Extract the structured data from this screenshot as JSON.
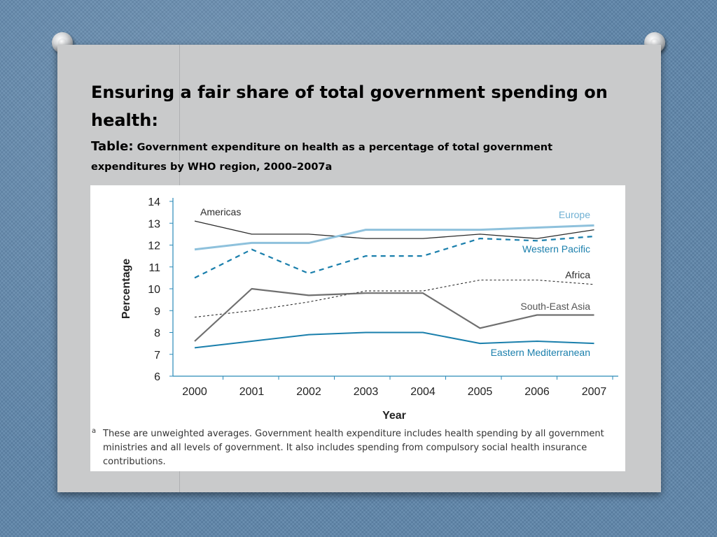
{
  "slide": {
    "title": "Ensuring a fair share of total government spending on health:",
    "subtitle_lead": "Table:",
    "subtitle_rest": " Government expenditure on health as a percentage of total government expenditures by WHO region, 2000–2007a"
  },
  "chart_data": {
    "type": "line",
    "xlabel": "Year",
    "ylabel": "Percentage",
    "x": [
      "2000",
      "2001",
      "2002",
      "2003",
      "2004",
      "2005",
      "2006",
      "2007"
    ],
    "ylim": [
      6,
      14
    ],
    "y_ticks": [
      "6",
      "7",
      "8",
      "9",
      "10",
      "11",
      "12",
      "13",
      "14"
    ],
    "grid": false,
    "legend": "labels at line ends",
    "series": [
      {
        "name": "Americas",
        "color": "#2b2b2b",
        "style": "solid",
        "values": [
          13.1,
          12.5,
          12.5,
          12.3,
          12.3,
          12.5,
          12.3,
          12.7
        ]
      },
      {
        "name": "Europe",
        "color": "#8ec1dc",
        "style": "solid-thick",
        "values": [
          11.8,
          12.1,
          12.1,
          12.7,
          12.7,
          12.7,
          12.8,
          12.9
        ]
      },
      {
        "name": "Western Pacific",
        "color": "#1a7fac",
        "style": "dashed",
        "values": [
          10.5,
          11.8,
          10.7,
          11.5,
          11.5,
          12.3,
          12.2,
          12.4
        ]
      },
      {
        "name": "Africa",
        "color": "#2b2b2b",
        "style": "dotted",
        "values": [
          8.7,
          9.0,
          9.4,
          9.9,
          9.9,
          10.4,
          10.4,
          10.2
        ]
      },
      {
        "name": "South-East Asia",
        "color": "#6f6f6f",
        "style": "solid",
        "values": [
          7.6,
          10.0,
          9.7,
          9.8,
          9.8,
          8.2,
          8.8,
          8.8
        ]
      },
      {
        "name": "Eastern Mediterranean",
        "color": "#1a7fac",
        "style": "solid",
        "values": [
          7.3,
          7.6,
          7.9,
          8.0,
          8.0,
          7.5,
          7.6,
          7.5
        ]
      }
    ],
    "footnote_mark": "a",
    "footnote": "These are unweighted averages. Government health expenditure includes health spending by all government ministries and all levels of government. It also includes spending from compulsory social health insurance contributions."
  }
}
